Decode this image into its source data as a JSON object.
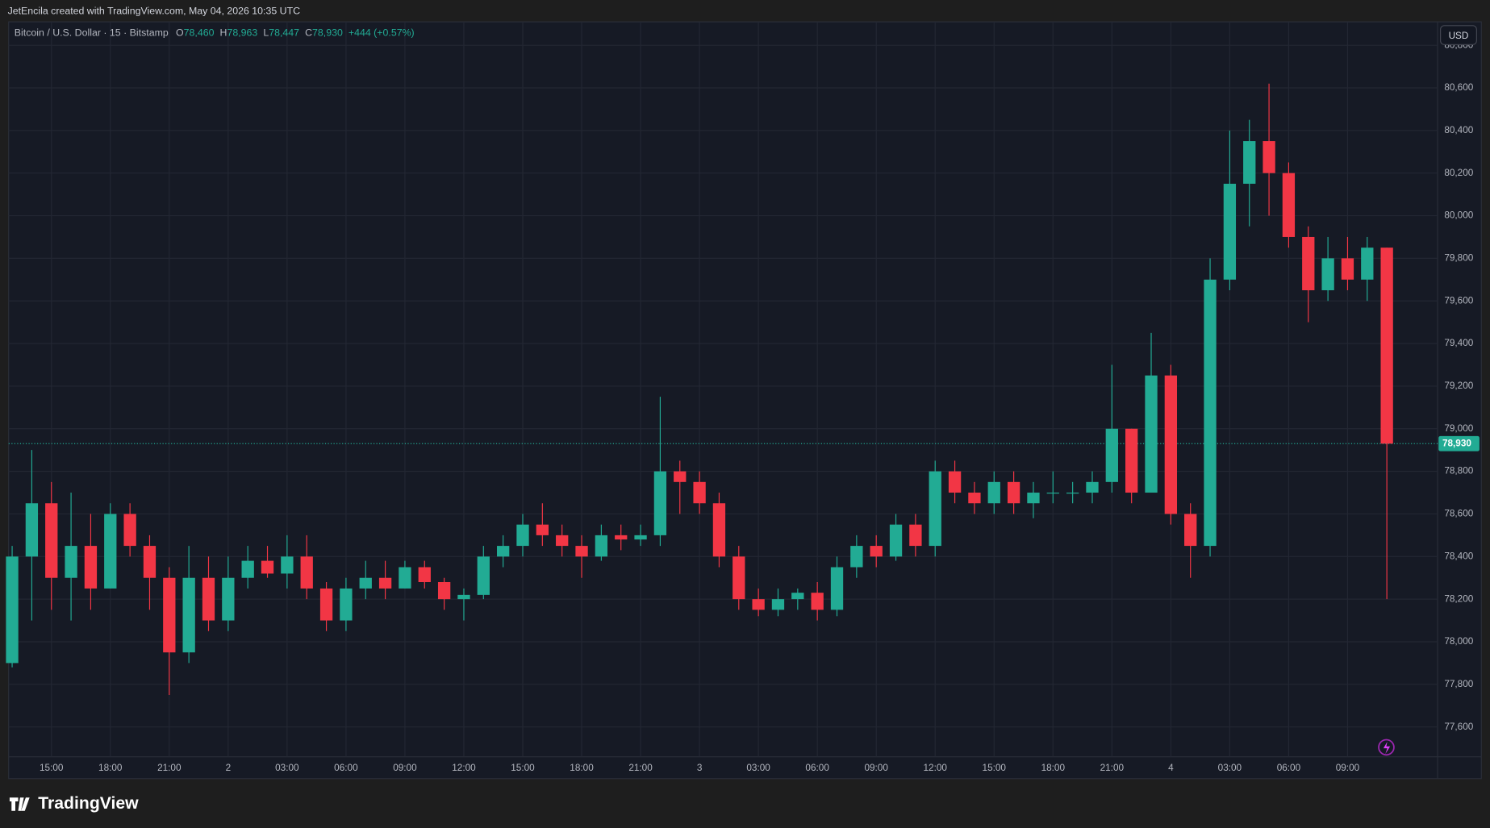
{
  "header": {
    "credit": "JetEncila created with TradingView.com, May 04, 2026 10:35 UTC"
  },
  "chart_data": {
    "type": "candlestick",
    "title": "Bitcoin / U.S. Dollar · 15 · Bitstamp",
    "ohlc_legend": [
      {
        "label": "O",
        "value": "78,460"
      },
      {
        "label": "H",
        "value": "78,963"
      },
      {
        "label": "L",
        "value": "78,447"
      },
      {
        "label": "C",
        "value": "78,930"
      }
    ],
    "change": "+444 (+0.57%)",
    "currency": "USD",
    "last_price": {
      "value": 78930,
      "label": "78,930"
    },
    "up_color": "#22ab94",
    "down_color": "#f23645",
    "grid": true,
    "ylim": [
      77460,
      80910
    ],
    "yticks": [
      {
        "value": 77600,
        "label": "77,600"
      },
      {
        "value": 77800,
        "label": "77,800"
      },
      {
        "value": 78000,
        "label": "78,000"
      },
      {
        "value": 78200,
        "label": "78,200"
      },
      {
        "value": 78400,
        "label": "78,400"
      },
      {
        "value": 78600,
        "label": "78,600"
      },
      {
        "value": 78800,
        "label": "78,800"
      },
      {
        "value": 79000,
        "label": "79,000"
      },
      {
        "value": 79200,
        "label": "79,200"
      },
      {
        "value": 79400,
        "label": "79,400"
      },
      {
        "value": 79600,
        "label": "79,600"
      },
      {
        "value": 79800,
        "label": "79,800"
      },
      {
        "value": 80000,
        "label": "80,000"
      },
      {
        "value": 80200,
        "label": "80,200"
      },
      {
        "value": 80400,
        "label": "80,400"
      },
      {
        "value": 80600,
        "label": "80,600"
      },
      {
        "value": 80800,
        "label": "80,800"
      }
    ],
    "categories": [
      null,
      null,
      "15:00",
      null,
      null,
      "18:00",
      null,
      null,
      "21:00",
      null,
      null,
      "2",
      null,
      null,
      "03:00",
      null,
      null,
      "06:00",
      null,
      null,
      "09:00",
      null,
      null,
      "12:00",
      null,
      null,
      "15:00",
      null,
      null,
      "18:00",
      null,
      null,
      "21:00",
      null,
      null,
      "3",
      null,
      null,
      "03:00",
      null,
      null,
      "06:00",
      null,
      null,
      "09:00",
      null,
      null,
      "12:00",
      null,
      null,
      "15:00",
      null,
      null,
      "18:00",
      null,
      null,
      "21:00",
      null,
      null,
      "4",
      null,
      null,
      "03:00",
      null,
      null,
      "06:00",
      null,
      null,
      "09:00",
      null,
      null
    ],
    "candles": [
      [
        77900,
        78450,
        77880,
        78400
      ],
      [
        78400,
        78900,
        78100,
        78650
      ],
      [
        78650,
        78750,
        78150,
        78300
      ],
      [
        78300,
        78700,
        78100,
        78450
      ],
      [
        78450,
        78600,
        78150,
        78250
      ],
      [
        78250,
        78650,
        78250,
        78600
      ],
      [
        78600,
        78650,
        78400,
        78450
      ],
      [
        78450,
        78500,
        78150,
        78300
      ],
      [
        78300,
        78350,
        77750,
        77950
      ],
      [
        77950,
        78450,
        77900,
        78300
      ],
      [
        78300,
        78400,
        78050,
        78100
      ],
      [
        78100,
        78400,
        78050,
        78300
      ],
      [
        78300,
        78450,
        78250,
        78380
      ],
      [
        78380,
        78450,
        78300,
        78320
      ],
      [
        78320,
        78500,
        78250,
        78400
      ],
      [
        78400,
        78500,
        78200,
        78250
      ],
      [
        78250,
        78280,
        78050,
        78100
      ],
      [
        78100,
        78300,
        78050,
        78250
      ],
      [
        78250,
        78380,
        78200,
        78300
      ],
      [
        78300,
        78380,
        78200,
        78250
      ],
      [
        78250,
        78380,
        78250,
        78350
      ],
      [
        78350,
        78380,
        78250,
        78280
      ],
      [
        78280,
        78300,
        78150,
        78200
      ],
      [
        78200,
        78250,
        78100,
        78220
      ],
      [
        78220,
        78450,
        78200,
        78400
      ],
      [
        78400,
        78500,
        78350,
        78450
      ],
      [
        78450,
        78600,
        78400,
        78550
      ],
      [
        78550,
        78650,
        78450,
        78500
      ],
      [
        78500,
        78550,
        78400,
        78450
      ],
      [
        78450,
        78500,
        78300,
        78400
      ],
      [
        78400,
        78550,
        78380,
        78500
      ],
      [
        78500,
        78550,
        78430,
        78480
      ],
      [
        78480,
        78550,
        78450,
        78500
      ],
      [
        78500,
        79150,
        78450,
        78800
      ],
      [
        78800,
        78850,
        78600,
        78750
      ],
      [
        78750,
        78800,
        78600,
        78650
      ],
      [
        78650,
        78700,
        78350,
        78400
      ],
      [
        78400,
        78450,
        78150,
        78200
      ],
      [
        78200,
        78250,
        78120,
        78150
      ],
      [
        78150,
        78250,
        78120,
        78200
      ],
      [
        78200,
        78250,
        78150,
        78230
      ],
      [
        78230,
        78280,
        78100,
        78150
      ],
      [
        78150,
        78400,
        78120,
        78350
      ],
      [
        78350,
        78500,
        78300,
        78450
      ],
      [
        78450,
        78500,
        78350,
        78400
      ],
      [
        78400,
        78600,
        78380,
        78550
      ],
      [
        78550,
        78600,
        78400,
        78450
      ],
      [
        78450,
        78850,
        78400,
        78800
      ],
      [
        78800,
        78850,
        78650,
        78700
      ],
      [
        78700,
        78750,
        78600,
        78650
      ],
      [
        78650,
        78800,
        78600,
        78750
      ],
      [
        78750,
        78800,
        78600,
        78650
      ],
      [
        78650,
        78750,
        78580,
        78700
      ],
      [
        78700,
        78800,
        78650,
        78700
      ],
      [
        78700,
        78750,
        78650,
        78700
      ],
      [
        78700,
        78800,
        78650,
        78750
      ],
      [
        78750,
        79300,
        78700,
        79000
      ],
      [
        79000,
        79000,
        78650,
        78700
      ],
      [
        78700,
        79450,
        78700,
        79250
      ],
      [
        79250,
        79300,
        78550,
        78600
      ],
      [
        78600,
        78650,
        78300,
        78450
      ],
      [
        78450,
        79800,
        78400,
        79700
      ],
      [
        79700,
        80400,
        79650,
        80150
      ],
      [
        80150,
        80450,
        79950,
        80350
      ],
      [
        80350,
        80620,
        80000,
        80200
      ],
      [
        80200,
        80250,
        79850,
        79900
      ],
      [
        79900,
        79950,
        79500,
        79650
      ],
      [
        79650,
        79900,
        79600,
        79800
      ],
      [
        79800,
        79900,
        79650,
        79700
      ],
      [
        79700,
        79900,
        79600,
        79850
      ],
      [
        79850,
        79850,
        78200,
        78930
      ]
    ]
  },
  "footer": {
    "brand": "TradingView"
  }
}
